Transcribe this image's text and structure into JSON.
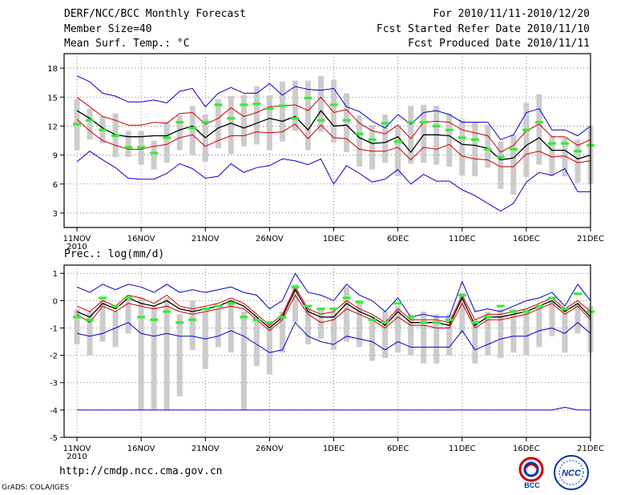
{
  "header": {
    "left_line1": "DERF/NCC/BCC Monthly Forecast",
    "left_line2": "Member Size=40",
    "left_line3": "Mean Surf. Temp.: °C",
    "right_line1": "For 2010/11/11-2010/12/20",
    "right_line2": "Fcst Started Refer Date 2010/11/10",
    "right_line3": "Fcst Produced Date 2010/11/11"
  },
  "footer": {
    "url": "http://cmdp.ncc.cma.gov.cn",
    "credit": "GrADS: COLA/IGES"
  },
  "logos": {
    "bcc": "BCC",
    "ncc": "NCC"
  },
  "colors": {
    "mean": "#000000",
    "spread": "#cc0000",
    "minmax": "#0000cc",
    "obs": "#33ee33",
    "box": "#cccccc"
  },
  "chart_data": [
    {
      "type": "line",
      "title": "Mean Surf. Temp.: °C",
      "ylim": [
        1.5,
        19.5
      ],
      "yticks": [
        3,
        6,
        9,
        12,
        15,
        18
      ],
      "xticks": [
        {
          "day": 1,
          "label": "11NOV",
          "sub": "2010"
        },
        {
          "day": 6,
          "label": "16NOV"
        },
        {
          "day": 11,
          "label": "21NOV"
        },
        {
          "day": 16,
          "label": "26NOV"
        },
        {
          "day": 21,
          "label": "1DEC"
        },
        {
          "day": 26,
          "label": "6DEC"
        },
        {
          "day": 31,
          "label": "11DEC"
        },
        {
          "day": 36,
          "label": "16DEC"
        },
        {
          "day": 41,
          "label": "21DEC"
        }
      ],
      "grid": true,
      "series": [
        {
          "name": "max",
          "values": [
            17.2,
            16.6,
            15.4,
            15.1,
            14.5,
            14.5,
            14.7,
            14.4,
            15.6,
            15.9,
            14.0,
            15.4,
            16.0,
            15.4,
            15.4,
            16.4,
            15.2,
            16.1,
            15.8,
            15.7,
            15.9,
            14.0,
            13.5,
            12.5,
            11.8,
            13.2,
            12.2,
            13.4,
            13.6,
            13.2,
            12.4,
            12.4,
            12.4,
            10.6,
            11.1,
            13.4,
            13.8,
            11.6,
            11.6,
            11.0,
            12.0
          ]
        },
        {
          "name": "mean_plus_sd",
          "values": [
            15.0,
            14.0,
            13.0,
            12.6,
            12.1,
            12.1,
            12.4,
            12.3,
            13.3,
            13.4,
            12.2,
            12.8,
            13.9,
            13.0,
            13.4,
            14.0,
            14.1,
            14.2,
            13.6,
            15.0,
            13.4,
            13.7,
            12.3,
            11.5,
            11.2,
            12.1,
            10.7,
            12.4,
            12.5,
            12.4,
            11.6,
            11.3,
            11.0,
            9.3,
            10.0,
            11.5,
            12.2,
            10.9,
            10.9,
            10.0,
            10.6
          ]
        },
        {
          "name": "mean",
          "values": [
            13.6,
            12.8,
            11.8,
            11.1,
            10.9,
            10.9,
            11.0,
            11.0,
            11.6,
            12.0,
            10.8,
            11.8,
            12.3,
            11.8,
            12.3,
            12.8,
            12.5,
            13.0,
            11.6,
            13.6,
            12.0,
            12.1,
            10.8,
            10.2,
            10.3,
            10.9,
            9.3,
            11.1,
            11.1,
            11.0,
            10.1,
            10.0,
            9.7,
            8.5,
            8.7,
            10.0,
            10.8,
            9.5,
            9.5,
            8.6,
            9.0
          ]
        },
        {
          "name": "mean_minus_sd",
          "values": [
            12.7,
            11.5,
            10.5,
            10.0,
            9.6,
            9.6,
            9.9,
            10.1,
            10.8,
            11.1,
            9.9,
            10.5,
            11.0,
            11.0,
            11.4,
            11.3,
            11.4,
            12.2,
            10.7,
            12.1,
            10.8,
            10.7,
            9.6,
            9.4,
            9.4,
            9.8,
            8.5,
            9.8,
            9.6,
            10.1,
            8.9,
            8.6,
            8.5,
            7.8,
            7.8,
            9.1,
            9.4,
            8.8,
            8.9,
            8.2,
            8.4
          ]
        },
        {
          "name": "min",
          "values": [
            8.3,
            9.4,
            8.5,
            7.7,
            6.6,
            6.5,
            6.5,
            7.1,
            8.1,
            7.6,
            6.6,
            6.8,
            8.1,
            7.2,
            7.7,
            7.9,
            8.6,
            8.4,
            8.0,
            8.6,
            6.0,
            7.9,
            7.1,
            6.2,
            6.5,
            7.5,
            6.0,
            7.0,
            6.3,
            6.3,
            5.4,
            4.8,
            4.0,
            3.2,
            4.0,
            6.2,
            7.2,
            6.9,
            7.6,
            5.2,
            5.2
          ]
        }
      ],
      "observed": [
        12.2,
        12.6,
        11.6,
        11.0,
        9.8,
        9.8,
        9.2,
        10.8,
        12.4,
        11.8,
        12.4,
        14.2,
        12.8,
        14.2,
        14.3,
        13.8,
        14.1,
        12.8,
        14.9,
        12.6,
        14.2,
        12.6,
        11.2,
        10.6,
        12.3,
        10.4,
        12.4,
        12.4,
        12.0,
        11.6,
        10.8,
        10.6,
        9.6,
        8.8,
        9.6,
        11.6,
        12.4,
        10.2,
        10.2,
        9.4,
        10.0
      ],
      "boxes": [
        [
          9.5,
          14.8
        ],
        [
          10.6,
          13.8
        ],
        [
          10.2,
          13.0
        ],
        [
          8.8,
          13.3
        ],
        [
          8.8,
          11.5
        ],
        [
          8.0,
          11.5
        ],
        [
          7.5,
          10.5
        ],
        [
          8.2,
          12.4
        ],
        [
          9.5,
          13.1
        ],
        [
          9.0,
          14.1
        ],
        [
          8.3,
          13.2
        ],
        [
          9.7,
          14.8
        ],
        [
          9.1,
          15.1
        ],
        [
          9.9,
          15.2
        ],
        [
          10.1,
          16.1
        ],
        [
          9.5,
          15.2
        ],
        [
          10.4,
          16.6
        ],
        [
          11.5,
          16.7
        ],
        [
          9.5,
          16.7
        ],
        [
          11.4,
          17.2
        ],
        [
          10.3,
          16.8
        ],
        [
          9.3,
          15.4
        ],
        [
          7.8,
          13.1
        ],
        [
          7.5,
          12.1
        ],
        [
          8.2,
          13.2
        ],
        [
          6.8,
          11.9
        ],
        [
          8.1,
          14.1
        ],
        [
          8.2,
          14.2
        ],
        [
          8.0,
          14.1
        ],
        [
          7.8,
          13.3
        ],
        [
          6.9,
          12.7
        ],
        [
          6.8,
          12.4
        ],
        [
          7.7,
          12.1
        ],
        [
          5.5,
          10.4
        ],
        [
          4.9,
          11.1
        ],
        [
          6.7,
          14.4
        ],
        [
          8.0,
          15.3
        ],
        [
          6.8,
          11.0
        ],
        [
          6.8,
          10.8
        ],
        [
          6.1,
          10.6
        ],
        [
          6.0,
          12.0
        ]
      ]
    },
    {
      "type": "line",
      "title": "Prec.: log(mm/d)",
      "ylim": [
        -5,
        1.3
      ],
      "yticks": [
        -5,
        -4,
        -3,
        -2,
        -1,
        0,
        1
      ],
      "xticks": [
        {
          "day": 1,
          "label": "11NOV",
          "sub": "2010"
        },
        {
          "day": 6,
          "label": "16NOV"
        },
        {
          "day": 11,
          "label": "21NOV"
        },
        {
          "day": 16,
          "label": "26NOV"
        },
        {
          "day": 21,
          "label": "1DEC"
        },
        {
          "day": 26,
          "label": "6DEC"
        },
        {
          "day": 31,
          "label": "11DEC"
        },
        {
          "day": 36,
          "label": "16DEC"
        },
        {
          "day": 41,
          "label": "21DEC"
        }
      ],
      "grid": true,
      "series": [
        {
          "name": "max",
          "values": [
            0.5,
            0.3,
            0.6,
            0.4,
            0.6,
            0.5,
            0.3,
            0.6,
            0.3,
            0.4,
            0.3,
            0.4,
            0.5,
            0.3,
            0.2,
            -0.3,
            0.0,
            1.0,
            0.3,
            0.2,
            0.0,
            0.6,
            0.2,
            0.0,
            -0.4,
            0.1,
            -0.6,
            -0.5,
            -0.6,
            -0.6,
            0.7,
            -0.4,
            -0.3,
            -0.4,
            -0.2,
            0.0,
            0.1,
            0.3,
            -0.2,
            0.6,
            0.0
          ]
        },
        {
          "name": "mean_plus_sd",
          "values": [
            -0.2,
            -0.4,
            0.0,
            -0.2,
            0.2,
            0.1,
            -0.1,
            0.2,
            -0.2,
            -0.3,
            -0.2,
            -0.1,
            0.1,
            -0.1,
            -0.5,
            -0.9,
            -0.5,
            0.5,
            -0.3,
            -0.5,
            -0.4,
            0.0,
            -0.3,
            -0.5,
            -0.8,
            -0.3,
            -0.7,
            -0.7,
            -0.7,
            -0.8,
            0.2,
            -0.7,
            -0.5,
            -0.5,
            -0.4,
            -0.3,
            -0.1,
            0.1,
            -0.3,
            0.0,
            -0.4
          ]
        },
        {
          "name": "mean",
          "values": [
            -0.4,
            -0.6,
            -0.1,
            -0.3,
            0.1,
            -0.1,
            -0.2,
            0.0,
            -0.3,
            -0.4,
            -0.3,
            -0.2,
            0.0,
            -0.2,
            -0.6,
            -1.0,
            -0.6,
            0.4,
            -0.4,
            -0.6,
            -0.6,
            -0.1,
            -0.4,
            -0.6,
            -0.9,
            -0.4,
            -0.8,
            -0.8,
            -0.8,
            -0.9,
            0.1,
            -0.9,
            -0.6,
            -0.6,
            -0.5,
            -0.4,
            -0.2,
            0.0,
            -0.4,
            -0.1,
            -0.6
          ]
        },
        {
          "name": "mean_minus_sd",
          "values": [
            -0.5,
            -0.8,
            -0.2,
            -0.4,
            -0.1,
            -0.2,
            -0.3,
            -0.2,
            -0.4,
            -0.5,
            -0.4,
            -0.3,
            -0.2,
            -0.3,
            -0.7,
            -1.1,
            -0.7,
            0.2,
            -0.5,
            -0.8,
            -0.7,
            -0.3,
            -0.5,
            -0.7,
            -1.0,
            -0.6,
            -0.9,
            -0.9,
            -1.0,
            -1.0,
            -0.1,
            -1.0,
            -0.7,
            -0.7,
            -0.6,
            -0.5,
            -0.3,
            -0.1,
            -0.5,
            -0.2,
            -0.7
          ]
        },
        {
          "name": "min",
          "values": [
            -1.2,
            -1.3,
            -1.2,
            -1.0,
            -0.8,
            -1.2,
            -1.3,
            -1.2,
            -1.3,
            -1.3,
            -1.4,
            -1.3,
            -1.1,
            -1.3,
            -1.6,
            -1.9,
            -1.8,
            -0.8,
            -1.3,
            -1.5,
            -1.6,
            -1.3,
            -1.4,
            -1.5,
            -1.8,
            -1.5,
            -1.7,
            -1.7,
            -1.7,
            -1.7,
            -1.1,
            -1.8,
            -1.6,
            -1.4,
            -1.3,
            -1.3,
            -1.1,
            -1.0,
            -1.2,
            -0.8,
            -1.2
          ]
        },
        {
          "name": "lower_limit",
          "values": [
            -4,
            -4,
            -4,
            -4,
            -4,
            -4,
            -4,
            -4,
            -4,
            -4,
            -4,
            -4,
            -4,
            -4,
            -4,
            -4,
            -4,
            -4,
            -4,
            -4,
            -4,
            -4,
            -4,
            -4,
            -4,
            -4,
            -4,
            -4,
            -4,
            -4,
            -4,
            -4,
            -4,
            -4,
            -4,
            -4,
            -4,
            -4,
            -3.9,
            -4,
            -4
          ]
        }
      ],
      "observed": [
        -0.6,
        -0.7,
        0.1,
        -0.2,
        0.1,
        -0.6,
        -0.7,
        -0.4,
        -0.8,
        -0.7,
        -0.3,
        -0.2,
        -0.1,
        -0.6,
        -0.7,
        -0.8,
        -0.6,
        0.5,
        -0.2,
        -0.3,
        -0.3,
        0.1,
        -0.05,
        -0.7,
        -0.8,
        -0.1,
        -0.6,
        -0.8,
        -0.8,
        -0.7,
        0.2,
        -0.8,
        -0.6,
        -0.2,
        -0.4,
        -0.4,
        -0.2,
        0.1,
        -0.3,
        0.25,
        -0.4
      ],
      "boxes": [
        [
          -1.6,
          -0.3
        ],
        [
          -2.0,
          -0.4
        ],
        [
          -1.5,
          0.1
        ],
        [
          -1.7,
          -0.4
        ],
        [
          -1.2,
          0.2
        ],
        [
          -4.0,
          0.1
        ],
        [
          -4.0,
          -0.2
        ],
        [
          -4.0,
          0.1
        ],
        [
          -3.5,
          -0.5
        ],
        [
          -1.8,
          0.0
        ],
        [
          -2.5,
          -0.4
        ],
        [
          -1.7,
          -0.3
        ],
        [
          -1.9,
          0.0
        ],
        [
          -4.0,
          -0.4
        ],
        [
          -2.4,
          -0.6
        ],
        [
          -2.7,
          -0.8
        ],
        [
          -1.9,
          -0.4
        ],
        [
          -0.8,
          0.6
        ],
        [
          -1.6,
          -0.2
        ],
        [
          -1.4,
          -0.3
        ],
        [
          -1.8,
          -0.4
        ],
        [
          -1.5,
          0.5
        ],
        [
          -1.7,
          0.0
        ],
        [
          -2.2,
          -0.6
        ],
        [
          -2.1,
          -0.4
        ],
        [
          -1.9,
          -0.2
        ],
        [
          -2.0,
          -0.5
        ],
        [
          -2.3,
          -0.4
        ],
        [
          -2.3,
          -0.5
        ],
        [
          -2.0,
          -0.5
        ],
        [
          -1.2,
          0.3
        ],
        [
          -2.3,
          -0.7
        ],
        [
          -2.0,
          -0.4
        ],
        [
          -2.1,
          -0.3
        ],
        [
          -1.9,
          -0.3
        ],
        [
          -2.0,
          -0.3
        ],
        [
          -1.7,
          -0.2
        ],
        [
          -1.3,
          0.0
        ],
        [
          -1.9,
          -0.3
        ],
        [
          -1.2,
          -0.1
        ],
        [
          -1.9,
          -0.2
        ]
      ]
    }
  ]
}
